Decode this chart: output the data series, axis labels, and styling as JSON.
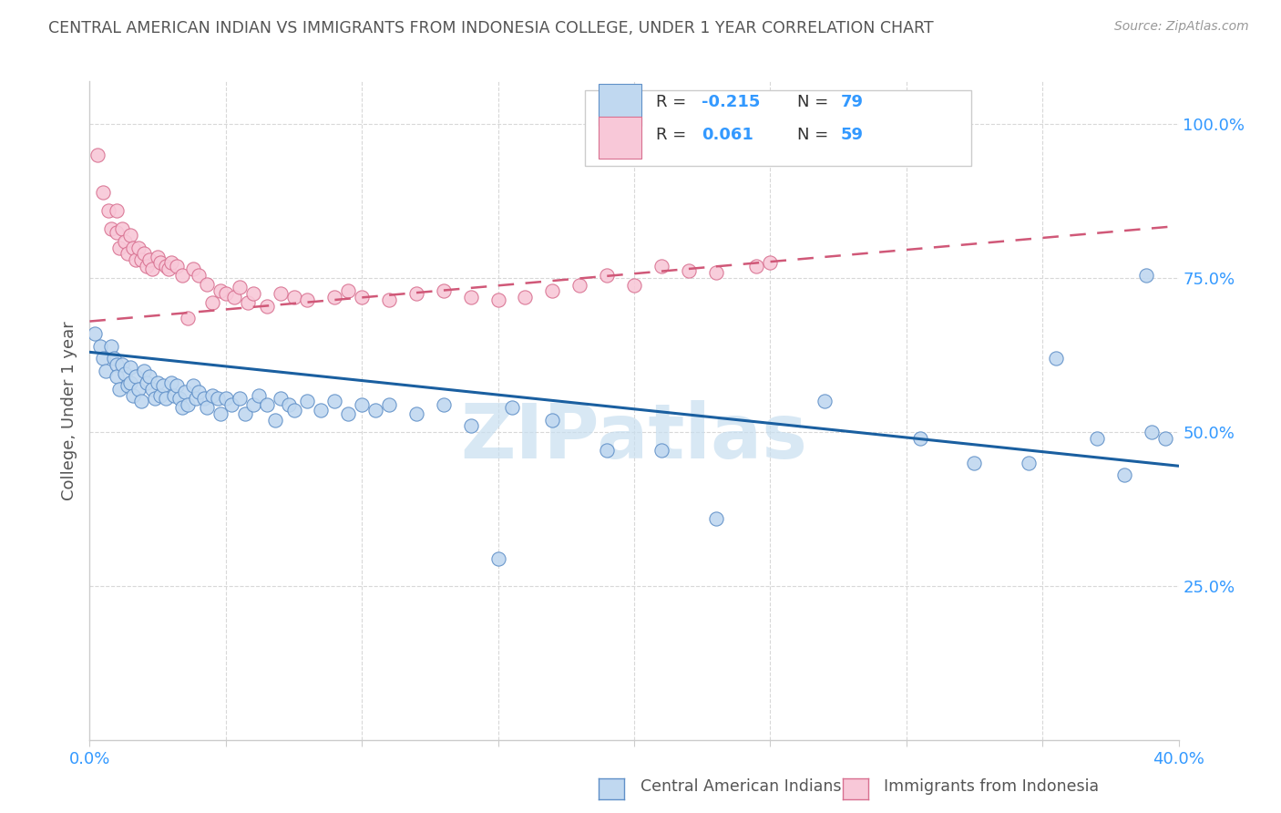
{
  "title": "CENTRAL AMERICAN INDIAN VS IMMIGRANTS FROM INDONESIA COLLEGE, UNDER 1 YEAR CORRELATION CHART",
  "source": "Source: ZipAtlas.com",
  "ylabel": "College, Under 1 year",
  "xlim": [
    0.0,
    0.4
  ],
  "ylim": [
    0.0,
    1.07
  ],
  "xtick_positions": [
    0.0,
    0.05,
    0.1,
    0.15,
    0.2,
    0.25,
    0.3,
    0.35,
    0.4
  ],
  "xticklabels": [
    "0.0%",
    "",
    "",
    "",
    "",
    "",
    "",
    "",
    "40.0%"
  ],
  "yticks_right": [
    0.25,
    0.5,
    0.75,
    1.0
  ],
  "ytick_labels_right": [
    "25.0%",
    "50.0%",
    "75.0%",
    "100.0%"
  ],
  "blue_color_face": "#c0d8f0",
  "blue_color_edge": "#6090c8",
  "pink_color_face": "#f8c8d8",
  "pink_color_edge": "#d87090",
  "blue_line_color": "#1a5fa0",
  "pink_line_color": "#d05878",
  "axis_label_color": "#3399ff",
  "title_color": "#555555",
  "source_color": "#999999",
  "watermark_color": "#c8dff0",
  "blue_trend_x": [
    0.0,
    0.4
  ],
  "blue_trend_y": [
    0.63,
    0.445
  ],
  "pink_trend_x": [
    0.0,
    0.4
  ],
  "pink_trend_y": [
    0.68,
    0.835
  ],
  "blue_x": [
    0.002,
    0.004,
    0.005,
    0.006,
    0.008,
    0.009,
    0.01,
    0.01,
    0.011,
    0.012,
    0.013,
    0.014,
    0.015,
    0.015,
    0.016,
    0.017,
    0.018,
    0.019,
    0.02,
    0.021,
    0.022,
    0.023,
    0.024,
    0.025,
    0.026,
    0.027,
    0.028,
    0.03,
    0.031,
    0.032,
    0.033,
    0.034,
    0.035,
    0.036,
    0.038,
    0.039,
    0.04,
    0.042,
    0.043,
    0.045,
    0.047,
    0.048,
    0.05,
    0.052,
    0.055,
    0.057,
    0.06,
    0.062,
    0.065,
    0.068,
    0.07,
    0.073,
    0.075,
    0.08,
    0.085,
    0.09,
    0.095,
    0.1,
    0.105,
    0.11,
    0.12,
    0.13,
    0.14,
    0.155,
    0.17,
    0.19,
    0.21,
    0.23,
    0.27,
    0.305,
    0.15,
    0.325,
    0.345,
    0.355,
    0.37,
    0.38,
    0.388,
    0.39,
    0.395
  ],
  "blue_y": [
    0.66,
    0.64,
    0.62,
    0.6,
    0.64,
    0.62,
    0.61,
    0.59,
    0.57,
    0.61,
    0.595,
    0.575,
    0.605,
    0.58,
    0.56,
    0.59,
    0.57,
    0.55,
    0.6,
    0.58,
    0.59,
    0.57,
    0.555,
    0.58,
    0.56,
    0.575,
    0.555,
    0.58,
    0.56,
    0.575,
    0.555,
    0.54,
    0.565,
    0.545,
    0.575,
    0.555,
    0.565,
    0.555,
    0.54,
    0.56,
    0.555,
    0.53,
    0.555,
    0.545,
    0.555,
    0.53,
    0.545,
    0.56,
    0.545,
    0.52,
    0.555,
    0.545,
    0.535,
    0.55,
    0.535,
    0.55,
    0.53,
    0.545,
    0.535,
    0.545,
    0.53,
    0.545,
    0.51,
    0.54,
    0.52,
    0.47,
    0.47,
    0.36,
    0.55,
    0.49,
    0.295,
    0.45,
    0.45,
    0.62,
    0.49,
    0.43,
    0.755,
    0.5,
    0.49
  ],
  "pink_x": [
    0.003,
    0.005,
    0.007,
    0.008,
    0.01,
    0.01,
    0.011,
    0.012,
    0.013,
    0.014,
    0.015,
    0.016,
    0.017,
    0.018,
    0.019,
    0.02,
    0.021,
    0.022,
    0.023,
    0.025,
    0.026,
    0.028,
    0.029,
    0.03,
    0.032,
    0.034,
    0.036,
    0.038,
    0.04,
    0.043,
    0.045,
    0.048,
    0.05,
    0.053,
    0.055,
    0.058,
    0.06,
    0.065,
    0.07,
    0.075,
    0.08,
    0.09,
    0.095,
    0.1,
    0.11,
    0.12,
    0.13,
    0.14,
    0.15,
    0.16,
    0.17,
    0.18,
    0.19,
    0.2,
    0.21,
    0.22,
    0.23,
    0.245,
    0.25
  ],
  "pink_y": [
    0.95,
    0.89,
    0.86,
    0.83,
    0.86,
    0.825,
    0.8,
    0.83,
    0.81,
    0.79,
    0.82,
    0.8,
    0.78,
    0.8,
    0.78,
    0.79,
    0.77,
    0.78,
    0.765,
    0.785,
    0.775,
    0.77,
    0.765,
    0.775,
    0.77,
    0.755,
    0.685,
    0.765,
    0.755,
    0.74,
    0.71,
    0.73,
    0.725,
    0.72,
    0.735,
    0.71,
    0.725,
    0.705,
    0.725,
    0.72,
    0.715,
    0.72,
    0.73,
    0.72,
    0.715,
    0.725,
    0.73,
    0.72,
    0.715,
    0.72,
    0.73,
    0.738,
    0.755,
    0.738,
    0.77,
    0.762,
    0.76,
    0.77,
    0.775
  ],
  "figsize": [
    14.06,
    8.92
  ],
  "dpi": 100
}
